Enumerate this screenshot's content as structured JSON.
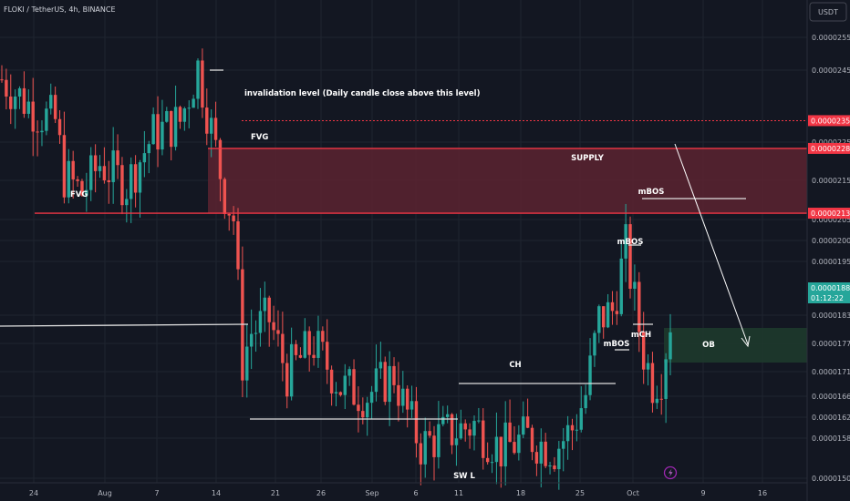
{
  "header": {
    "symbol": "FLOKI / TetherUS, 4h, BINANCE",
    "currency_button": "USDT"
  },
  "colors": {
    "background": "#131722",
    "grid": "#1f2430",
    "up": "#26a69a",
    "down": "#ef5350",
    "supply_zone": "#5c2330",
    "ob_zone": "#1e3a2c",
    "level_line": "#f23645",
    "white_line": "#e0e0e0"
  },
  "chart_data": {
    "type": "candlestick",
    "ylim": [
      1.5e-05,
      2.57e-05
    ],
    "y_ticks": [
      "0.00002550",
      "0.00002450",
      "0.00002250",
      "0.00002150",
      "0.00002050",
      "0.00002000",
      "0.00001950",
      "0.00001830",
      "0.00001770",
      "0.00001710",
      "0.00001660",
      "0.00001620",
      "0.00001580",
      "0.00001502"
    ],
    "x_ticks": [
      "24",
      "Aug",
      "7",
      "14",
      "21",
      "26",
      "Sep",
      "6",
      "11",
      "18",
      "25",
      "Oct",
      "9",
      "16"
    ],
    "price_labels": [
      {
        "value": "0.00002352",
        "kind": "level"
      },
      {
        "value": "0.00002286",
        "kind": "level"
      },
      {
        "value": "0.00002132",
        "kind": "level"
      },
      {
        "value": "0.00001885",
        "kind": "current"
      },
      {
        "value": "01:12:22",
        "kind": "countdown"
      }
    ],
    "close_path": [
      [
        0,
        2.45e-05
      ],
      [
        8,
        2.37e-05
      ],
      [
        12,
        2.35e-05
      ],
      [
        14,
        2.22e-05
      ],
      [
        18,
        2.18e-05
      ],
      [
        22,
        2.25e-05
      ],
      [
        28,
        2.2e-05
      ],
      [
        34,
        2.32e-05
      ],
      [
        40,
        2.35e-05
      ],
      [
        44,
        2.48e-05
      ],
      [
        46,
        2.38e-05
      ],
      [
        50,
        2.18e-05
      ],
      [
        52,
        2.12e-05
      ],
      [
        54,
        1.78e-05
      ],
      [
        56,
        1.85e-05
      ],
      [
        60,
        1.88e-05
      ],
      [
        64,
        1.75e-05
      ],
      [
        70,
        1.82e-05
      ],
      [
        76,
        1.72e-05
      ],
      [
        82,
        1.7e-05
      ],
      [
        88,
        1.75e-05
      ],
      [
        90,
        1.68e-05
      ],
      [
        94,
        1.58e-05
      ],
      [
        98,
        1.6e-05
      ],
      [
        106,
        1.63e-05
      ],
      [
        112,
        1.57e-05
      ],
      [
        118,
        1.6e-05
      ],
      [
        124,
        1.57e-05
      ],
      [
        128,
        1.62e-05
      ],
      [
        131,
        1.7e-05
      ],
      [
        134,
        1.88e-05
      ],
      [
        137,
        1.9e-05
      ],
      [
        140,
        2.05e-05
      ],
      [
        142,
        1.92e-05
      ],
      [
        144,
        1.8e-05
      ],
      [
        146,
        1.73e-05
      ],
      [
        148,
        1.75e-05
      ],
      [
        150,
        1.88e-05
      ]
    ],
    "annotations": [
      {
        "label": "invalidation level (Daily candle close above this level)"
      },
      {
        "label": "FVG"
      },
      {
        "label": "FVG"
      },
      {
        "label": "SUPPLY"
      },
      {
        "label": "mBOS"
      },
      {
        "label": "mBOS"
      },
      {
        "label": "mBOS"
      },
      {
        "label": "mCH"
      },
      {
        "label": "OB"
      },
      {
        "label": "CH"
      },
      {
        "label": "SW L"
      }
    ]
  }
}
